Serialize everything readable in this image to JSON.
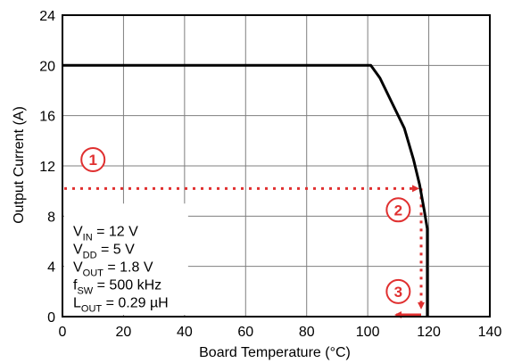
{
  "chart_data": {
    "type": "line",
    "xlabel": "Board Temperature (°C)",
    "ylabel": "Output Current (A)",
    "xlim": [
      0,
      140
    ],
    "ylim": [
      0,
      24
    ],
    "x_ticks": [
      "0",
      "20",
      "40",
      "60",
      "80",
      "100",
      "120",
      "140"
    ],
    "y_ticks": [
      "0",
      "4",
      "8",
      "12",
      "16",
      "20",
      "24"
    ],
    "grid": true,
    "series": [
      {
        "points": [
          [
            0,
            20
          ],
          [
            101,
            20
          ],
          [
            104,
            19
          ],
          [
            108,
            17
          ],
          [
            112,
            15
          ],
          [
            115,
            12.5
          ],
          [
            117,
            10.5
          ],
          [
            118.5,
            8.5
          ],
          [
            119.5,
            7
          ],
          [
            119.5,
            0
          ]
        ]
      }
    ],
    "conditions": [
      {
        "base": "V",
        "sub": "IN",
        "rest": " = 12 V"
      },
      {
        "base": "V",
        "sub": "DD",
        "rest": " = 5 V"
      },
      {
        "base": "V",
        "sub": "OUT",
        "rest": " = 1.8 V"
      },
      {
        "base": "f",
        "sub": "SW",
        "rest": " = 500 kHz"
      },
      {
        "base": "L",
        "sub": "OUT",
        "rest": " = 0.29 µH"
      }
    ],
    "annotations": [
      {
        "label": "1",
        "x": 10,
        "y": 12.5
      },
      {
        "label": "2",
        "x": 110,
        "y": 8.5
      },
      {
        "label": "3",
        "x": 110,
        "y": 2
      }
    ],
    "guide_current": 10.2,
    "guide_temperature": 117.5,
    "colors": {
      "curve": "#000000",
      "grid": "#7f7f7f",
      "guide": "#e03030"
    }
  }
}
